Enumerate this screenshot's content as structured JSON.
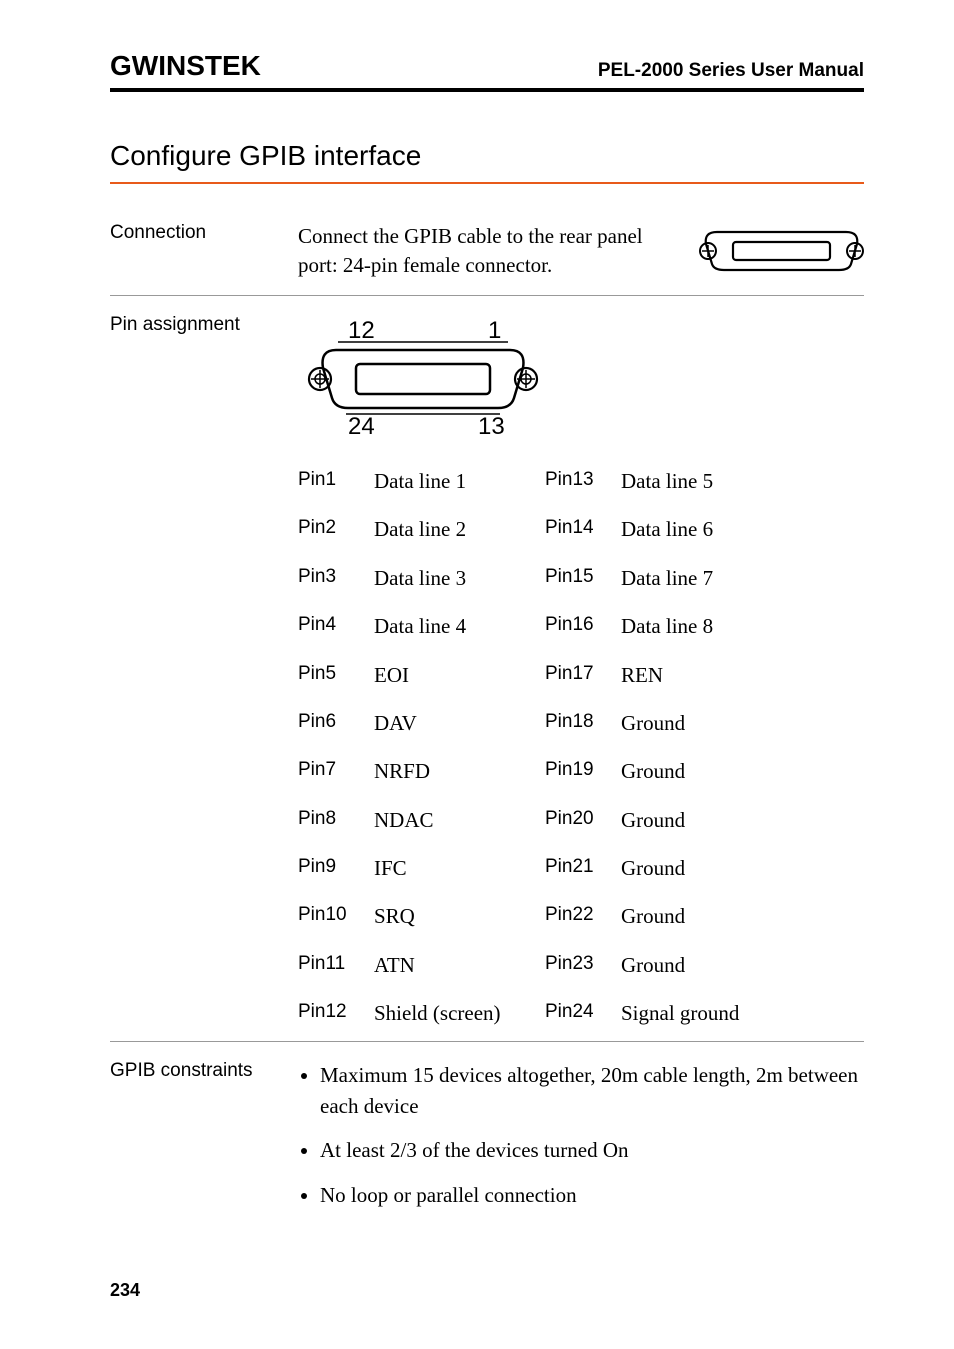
{
  "header": {
    "brand": "GWINSTEK",
    "doc_title": "PEL-2000 Series User Manual"
  },
  "section": {
    "title": "Configure GPIB interface",
    "rule_color": "#e85a1a"
  },
  "connection": {
    "label": "Connection",
    "text": "Connect the GPIB cable to the rear panel port: 24-pin female connector."
  },
  "pin_assignment": {
    "label": "Pin assignment",
    "diagram": {
      "top_left": "12",
      "top_right": "1",
      "bottom_left": "24",
      "bottom_right": "13"
    },
    "rows": [
      {
        "l_pin": "Pin1",
        "l_val": "Data line 1",
        "r_pin": "Pin13",
        "r_val": "Data line 5"
      },
      {
        "l_pin": "Pin2",
        "l_val": "Data line 2",
        "r_pin": "Pin14",
        "r_val": "Data line 6"
      },
      {
        "l_pin": "Pin3",
        "l_val": "Data line 3",
        "r_pin": "Pin15",
        "r_val": "Data line 7"
      },
      {
        "l_pin": "Pin4",
        "l_val": "Data line 4",
        "r_pin": "Pin16",
        "r_val": "Data line 8"
      },
      {
        "l_pin": "Pin5",
        "l_val": "EOI",
        "r_pin": "Pin17",
        "r_val": "REN"
      },
      {
        "l_pin": "Pin6",
        "l_val": "DAV",
        "r_pin": "Pin18",
        "r_val": "Ground"
      },
      {
        "l_pin": "Pin7",
        "l_val": "NRFD",
        "r_pin": "Pin19",
        "r_val": "Ground"
      },
      {
        "l_pin": "Pin8",
        "l_val": "NDAC",
        "r_pin": "Pin20",
        "r_val": "Ground"
      },
      {
        "l_pin": "Pin9",
        "l_val": "IFC",
        "r_pin": "Pin21",
        "r_val": "Ground"
      },
      {
        "l_pin": "Pin10",
        "l_val": "SRQ",
        "r_pin": "Pin22",
        "r_val": "Ground"
      },
      {
        "l_pin": "Pin11",
        "l_val": "ATN",
        "r_pin": "Pin23",
        "r_val": "Ground"
      },
      {
        "l_pin": "Pin12",
        "l_val": "Shield (screen)",
        "r_pin": "Pin24",
        "r_val": "Signal ground"
      }
    ]
  },
  "constraints": {
    "label": "GPIB constraints",
    "items": [
      "Maximum 15 devices altogether, 20m cable length, 2m between each device",
      "At least 2/3 of the devices turned On",
      "No loop or parallel connection"
    ]
  },
  "page_number": "234",
  "colors": {
    "text": "#000000",
    "rule": "#e85a1a",
    "divider": "#999999",
    "background": "#ffffff"
  },
  "typography": {
    "body_font": "Georgia, serif",
    "heading_font": "Arial, Helvetica, sans-serif",
    "body_size_pt": 16,
    "label_size_pt": 14,
    "section_title_pt": 21
  }
}
